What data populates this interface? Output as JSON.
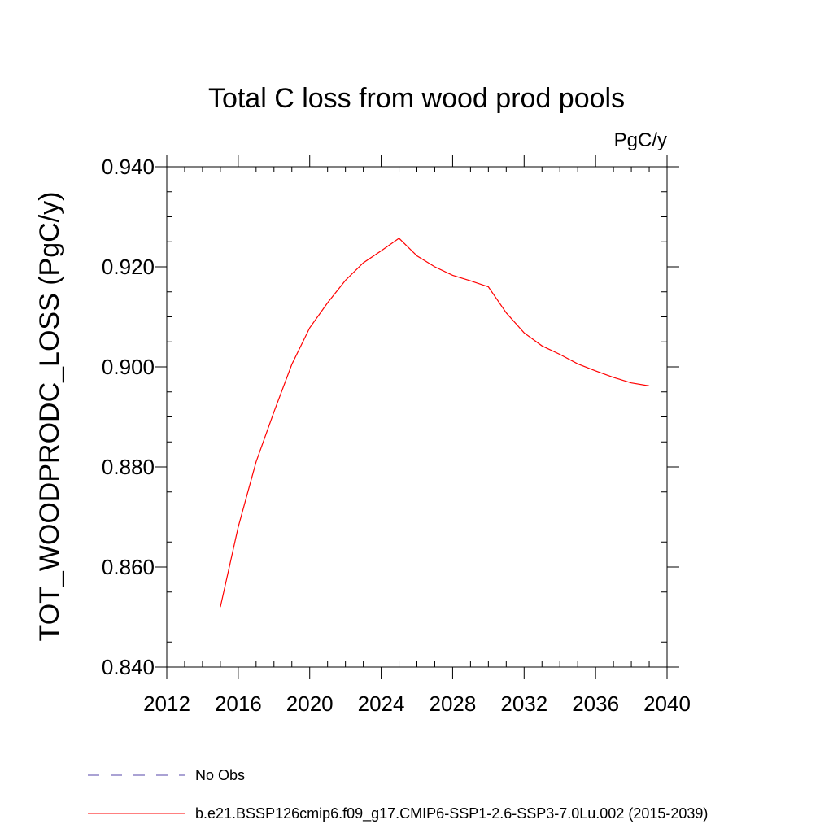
{
  "chart_data": {
    "type": "line",
    "title": "Total C loss from wood prod pools",
    "units": "PgC/y",
    "xlabel": "",
    "ylabel": "TOT_WOODPRODC_LOSS  (PgC/y)",
    "xlim": [
      2012,
      2040
    ],
    "ylim": [
      0.84,
      0.94
    ],
    "x_ticks": [
      2012,
      2016,
      2020,
      2024,
      2028,
      2032,
      2036,
      2040
    ],
    "x_tick_labels": [
      "2012",
      "2016",
      "2020",
      "2024",
      "2028",
      "2032",
      "2036",
      "2040"
    ],
    "y_ticks": [
      0.84,
      0.86,
      0.88,
      0.9,
      0.92,
      0.94
    ],
    "y_tick_labels": [
      "0.840",
      "0.860",
      "0.880",
      "0.900",
      "0.920",
      "0.940"
    ],
    "x_minor_step": 1,
    "y_minor_step": 0.005,
    "grid": false,
    "legend_position": "bottom",
    "series": [
      {
        "name": "No Obs",
        "color": "#5544aa",
        "style": "dashed",
        "x": [],
        "values": []
      },
      {
        "name": "b.e21.BSSP126cmip6.f09_g17.CMIP6-SSP1-2.6-SSP3-7.0Lu.002 (2015-2039)",
        "color": "#ff0000",
        "style": "solid",
        "x": [
          2015,
          2016,
          2017,
          2018,
          2019,
          2020,
          2021,
          2022,
          2023,
          2024,
          2025,
          2026,
          2027,
          2028,
          2029,
          2030,
          2031,
          2032,
          2033,
          2034,
          2035,
          2036,
          2037,
          2038,
          2039
        ],
        "values": [
          0.852,
          0.868,
          0.881,
          0.891,
          0.9005,
          0.9078,
          0.9128,
          0.9173,
          0.9208,
          0.9232,
          0.9257,
          0.9222,
          0.92,
          0.9183,
          0.9172,
          0.916,
          0.9108,
          0.9068,
          0.9042,
          0.9025,
          0.9006,
          0.8992,
          0.8979,
          0.8968,
          0.8962
        ]
      }
    ]
  }
}
